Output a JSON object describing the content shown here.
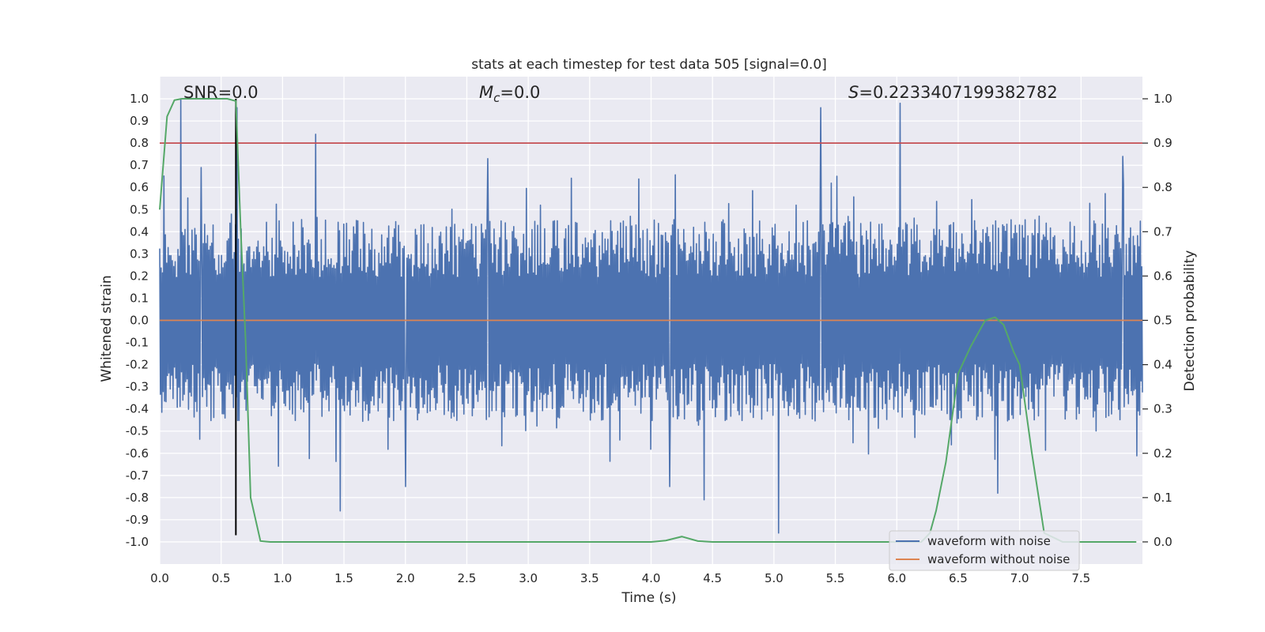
{
  "chart_data": {
    "type": "line",
    "title": "stats at each timestep for test data 505 [signal=0.0]",
    "xlabel": "Time (s)",
    "ylabel": "Whitened strain",
    "y2label": "Detection probability",
    "xlim": [
      0.0,
      8.0
    ],
    "ylim": [
      -1.1,
      1.1
    ],
    "y2lim": [
      -0.05,
      1.05
    ],
    "xticks": [
      0.0,
      0.5,
      1.0,
      1.5,
      2.0,
      2.5,
      3.0,
      3.5,
      4.0,
      4.5,
      5.0,
      5.5,
      6.0,
      6.5,
      7.0,
      7.5
    ],
    "xtick_labels": [
      "0.0",
      "0.5",
      "1.0",
      "1.5",
      "2.0",
      "2.5",
      "3.0",
      "3.5",
      "4.0",
      "4.5",
      "5.0",
      "5.5",
      "6.0",
      "6.5",
      "7.0",
      "7.5"
    ],
    "yticks": [
      1.0,
      0.9,
      0.8,
      0.7,
      0.6,
      0.5,
      0.4,
      0.3,
      0.2,
      0.1,
      0.0,
      -0.1,
      -0.2,
      -0.3,
      -0.4,
      -0.5,
      -0.6,
      -0.7,
      -0.8,
      -0.9,
      -1.0
    ],
    "ytick_labels": [
      "1.0",
      "0.9",
      "0.8",
      "0.7",
      "0.6",
      "0.5",
      "0.4",
      "0.3",
      "0.2",
      "0.1",
      "0.0",
      "-0.1",
      "-0.2",
      "-0.3",
      "-0.4",
      "-0.5",
      "-0.6",
      "-0.7",
      "-0.8",
      "-0.9",
      "-1.0"
    ],
    "y2ticks": [
      1.0,
      0.9,
      0.8,
      0.7,
      0.6,
      0.5,
      0.4,
      0.3,
      0.2,
      0.1,
      0.0
    ],
    "y2tick_labels": [
      "1.0",
      "0.9",
      "0.8",
      "0.7",
      "0.6",
      "0.5",
      "0.4",
      "0.3",
      "0.2",
      "0.1",
      "0.0"
    ],
    "annotations": {
      "snr": "SNR=0.0",
      "mc_symbol": "M",
      "mc_sub": "c",
      "mc_value": "=0.0",
      "s_symbol": "S",
      "s_value": "=0.2233407199382782"
    },
    "threshold": 0.8,
    "marker_time": 0.62,
    "noise": {
      "name": "waveform with noise",
      "t_start": 0.0,
      "t_end": 8.0,
      "n_samples": 1400,
      "typical_amplitude": 0.35,
      "spikes": [
        {
          "t": 0.17,
          "v": 1.0
        },
        {
          "t": 0.34,
          "v": 0.69
        },
        {
          "t": 0.63,
          "v": 0.96
        },
        {
          "t": 1.27,
          "v": 0.84
        },
        {
          "t": 1.47,
          "v": -0.86
        },
        {
          "t": 2.0,
          "v": -0.75
        },
        {
          "t": 2.67,
          "v": 0.73
        },
        {
          "t": 4.15,
          "v": -0.75
        },
        {
          "t": 4.43,
          "v": -0.81
        },
        {
          "t": 5.04,
          "v": -0.96
        },
        {
          "t": 5.38,
          "v": 0.96
        },
        {
          "t": 6.03,
          "v": 0.98
        },
        {
          "t": 6.82,
          "v": -0.78
        },
        {
          "t": 7.84,
          "v": 0.74
        }
      ]
    },
    "series": [
      {
        "name": "waveform with noise",
        "color": "#4c72b0"
      },
      {
        "name": "waveform without noise",
        "color": "#dd8452",
        "values": [
          0.0,
          0.0
        ]
      },
      {
        "name": "detection probability",
        "color": "#55a868",
        "axis": "right",
        "x": [
          0.0,
          0.06,
          0.12,
          0.18,
          0.25,
          0.35,
          0.45,
          0.55,
          0.62,
          0.66,
          0.7,
          0.74,
          0.82,
          0.9,
          1.0,
          2.0,
          3.0,
          4.0,
          4.12,
          4.25,
          4.38,
          4.5,
          5.0,
          5.5,
          6.0,
          6.2,
          6.27,
          6.32,
          6.4,
          6.5,
          6.6,
          6.72,
          6.8,
          6.87,
          6.95,
          7.0,
          7.1,
          7.2,
          7.35,
          7.6,
          7.95
        ],
        "values": [
          0.75,
          0.96,
          0.997,
          1.0,
          1.0,
          1.0,
          1.0,
          1.0,
          0.995,
          0.7,
          0.45,
          0.1,
          0.002,
          0.0,
          0.0,
          0.0,
          0.0,
          0.0,
          0.003,
          0.012,
          0.002,
          0.0,
          0.0,
          0.0,
          0.0,
          0.0,
          0.02,
          0.07,
          0.18,
          0.38,
          0.44,
          0.5,
          0.507,
          0.49,
          0.43,
          0.4,
          0.2,
          0.02,
          0.0,
          0.0,
          0.0
        ]
      }
    ],
    "legend": {
      "position": "lower-right",
      "entries": [
        {
          "label": "waveform with noise",
          "color": "#4c72b0"
        },
        {
          "label": "waveform without noise",
          "color": "#dd8452"
        }
      ]
    },
    "colors": {
      "plot_bg": "#eaeaf2",
      "grid": "#ffffff",
      "threshold": "#c44e52",
      "marker": "#000000"
    }
  }
}
